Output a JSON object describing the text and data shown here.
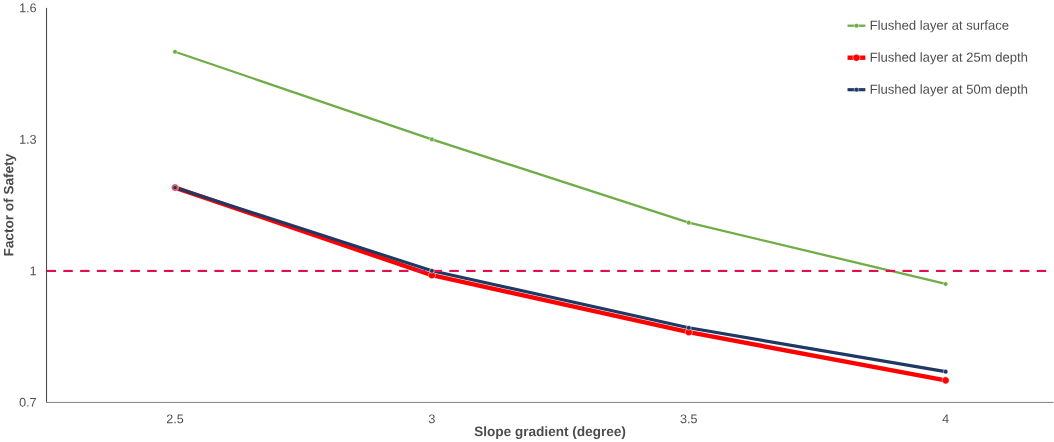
{
  "chart_data": {
    "type": "line",
    "xlabel": "Slope gradient (degree)",
    "ylabel": "Factor of Safety",
    "categories": [
      "2.5",
      "3",
      "3.5",
      "4"
    ],
    "series": [
      {
        "name": "Flushed layer at surface",
        "color": "#70ad47",
        "values": [
          1.5,
          1.3,
          1.11,
          0.97
        ]
      },
      {
        "name": "Flushed layer at 25m depth",
        "color": "#ff0000",
        "values": [
          1.19,
          0.99,
          0.86,
          0.75
        ]
      },
      {
        "name": "Flushed layer at 50m depth",
        "color": "#1f3864",
        "values": [
          1.19,
          1.0,
          0.87,
          0.77
        ]
      }
    ],
    "ylim": [
      0.7,
      1.6
    ],
    "yticks": [
      0.7,
      1.3,
      1,
      1.6
    ],
    "ref_lines": [
      {
        "axis": "y",
        "value": 1,
        "color": "#e0104a",
        "line_style": "dashed"
      }
    ],
    "grid": false,
    "legend": "top right",
    "marker": "circle",
    "line_style": "solid"
  }
}
